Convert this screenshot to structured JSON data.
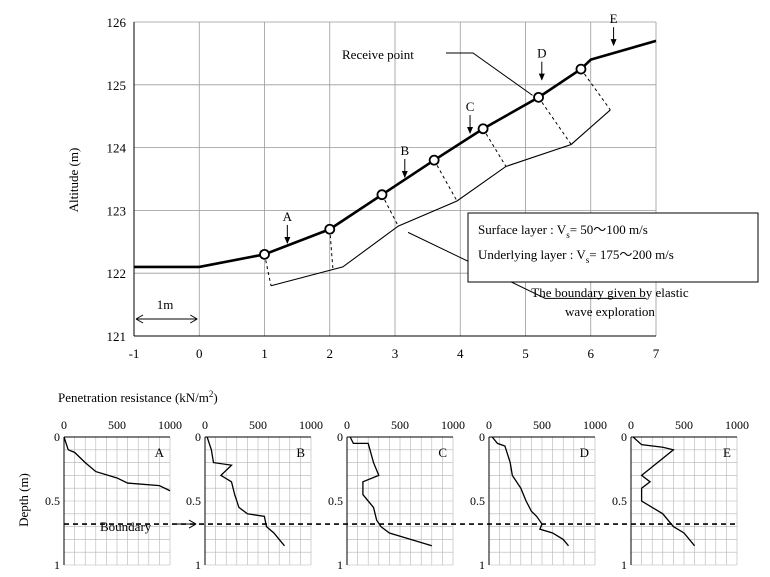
{
  "chart_data": [
    {
      "type": "line",
      "ylabel": "Altitude (m)",
      "xlim": [
        -1,
        7
      ],
      "ylim": [
        121,
        126
      ],
      "x_ticks": [
        "-1",
        "0",
        "1",
        "2",
        "3",
        "4",
        "5",
        "6",
        "7"
      ],
      "y_ticks": [
        "121",
        "122",
        "123",
        "124",
        "125",
        "126"
      ],
      "scale_label": "1m",
      "series": [
        {
          "role": "ground-surface",
          "points": [
            [
              -1,
              122.1
            ],
            [
              0,
              122.1
            ],
            [
              1,
              122.3
            ],
            [
              2,
              122.7
            ],
            [
              2.8,
              123.25
            ],
            [
              3.6,
              123.8
            ],
            [
              4.35,
              124.3
            ],
            [
              5.2,
              124.8
            ],
            [
              5.85,
              125.25
            ],
            [
              6,
              125.4
            ],
            [
              7,
              125.7
            ]
          ]
        },
        {
          "role": "boundary",
          "points": [
            [
              1.1,
              121.8
            ],
            [
              2.2,
              122.1
            ],
            [
              3.05,
              122.75
            ],
            [
              3.95,
              123.15
            ],
            [
              4.7,
              123.7
            ],
            [
              5.7,
              124.05
            ],
            [
              6.3,
              124.6
            ]
          ]
        }
      ],
      "receive_points": [
        [
          1,
          122.3
        ],
        [
          2,
          122.7
        ],
        [
          2.8,
          123.25
        ],
        [
          3.6,
          123.8
        ],
        [
          4.35,
          124.3
        ],
        [
          5.2,
          124.8
        ],
        [
          5.85,
          125.25
        ]
      ],
      "dashed_links": [
        [
          [
            1,
            122.3
          ],
          [
            1.1,
            121.8
          ]
        ],
        [
          [
            2,
            122.7
          ],
          [
            2.05,
            122.05
          ]
        ],
        [
          [
            2.8,
            123.25
          ],
          [
            3.05,
            122.75
          ]
        ],
        [
          [
            3.6,
            123.8
          ],
          [
            3.95,
            123.15
          ]
        ],
        [
          [
            4.35,
            124.3
          ],
          [
            4.7,
            123.7
          ]
        ],
        [
          [
            5.2,
            124.8
          ],
          [
            5.7,
            124.05
          ]
        ],
        [
          [
            5.85,
            125.25
          ],
          [
            6.3,
            124.6
          ]
        ]
      ],
      "station_labels": [
        {
          "name": "A",
          "at": [
            1.35,
            122.45
          ]
        },
        {
          "name": "B",
          "at": [
            3.15,
            123.5
          ]
        },
        {
          "name": "C",
          "at": [
            4.15,
            124.2
          ]
        },
        {
          "name": "D",
          "at": [
            5.25,
            125.05
          ]
        },
        {
          "name": "E",
          "at": [
            6.35,
            125.6
          ]
        }
      ],
      "annotations": {
        "receive_point": "Receive point",
        "surface_layer": "Surface layer :  V",
        "surface_layer_value": "= 50～100 m/s",
        "underlying_layer": "Underlying layer :  V",
        "underlying_layer_value": "= 175～200 m/s",
        "subscript": "s",
        "boundary_line1": "The boundary given by elastic",
        "boundary_line2": "wave exploration"
      }
    },
    {
      "type": "line",
      "title": "Penetration resistance (kN/m",
      "title_sup": "2",
      "title_end": ")",
      "ylabel": "Depth (m)",
      "xlim": [
        0,
        1000
      ],
      "ylim": [
        0,
        1
      ],
      "x_ticks": [
        "0",
        "500",
        "1000"
      ],
      "y_ticks": [
        "0",
        "0.5",
        "1"
      ],
      "boundary_depth": 0.68,
      "boundary_label": "Boundary",
      "panels": [
        {
          "name": "A",
          "points": [
            [
              0,
              0
            ],
            [
              40,
              0.1
            ],
            [
              100,
              0.12
            ],
            [
              200,
              0.2
            ],
            [
              300,
              0.27
            ],
            [
              500,
              0.32
            ],
            [
              600,
              0.36
            ],
            [
              900,
              0.38
            ],
            [
              1000,
              0.42
            ]
          ]
        },
        {
          "name": "B",
          "points": [
            [
              20,
              0
            ],
            [
              60,
              0.1
            ],
            [
              80,
              0.2
            ],
            [
              250,
              0.22
            ],
            [
              150,
              0.3
            ],
            [
              250,
              0.35
            ],
            [
              280,
              0.45
            ],
            [
              320,
              0.55
            ],
            [
              400,
              0.6
            ],
            [
              560,
              0.62
            ],
            [
              580,
              0.7
            ],
            [
              650,
              0.75
            ],
            [
              700,
              0.8
            ],
            [
              750,
              0.85
            ]
          ]
        },
        {
          "name": "C",
          "points": [
            [
              30,
              0
            ],
            [
              60,
              0.05
            ],
            [
              200,
              0.05
            ],
            [
              250,
              0.2
            ],
            [
              300,
              0.3
            ],
            [
              150,
              0.35
            ],
            [
              150,
              0.45
            ],
            [
              250,
              0.55
            ],
            [
              280,
              0.65
            ],
            [
              320,
              0.7
            ],
            [
              400,
              0.75
            ],
            [
              600,
              0.8
            ],
            [
              800,
              0.85
            ]
          ]
        },
        {
          "name": "D",
          "points": [
            [
              30,
              0
            ],
            [
              80,
              0.05
            ],
            [
              150,
              0.07
            ],
            [
              200,
              0.2
            ],
            [
              220,
              0.3
            ],
            [
              300,
              0.4
            ],
            [
              350,
              0.5
            ],
            [
              400,
              0.58
            ],
            [
              450,
              0.62
            ],
            [
              500,
              0.68
            ],
            [
              480,
              0.72
            ],
            [
              600,
              0.75
            ],
            [
              700,
              0.8
            ],
            [
              750,
              0.85
            ]
          ]
        },
        {
          "name": "E",
          "points": [
            [
              20,
              0
            ],
            [
              100,
              0.06
            ],
            [
              300,
              0.08
            ],
            [
              400,
              0.1
            ],
            [
              250,
              0.2
            ],
            [
              100,
              0.3
            ],
            [
              180,
              0.35
            ],
            [
              100,
              0.4
            ],
            [
              100,
              0.5
            ],
            [
              200,
              0.55
            ],
            [
              300,
              0.6
            ],
            [
              400,
              0.7
            ],
            [
              500,
              0.75
            ],
            [
              600,
              0.85
            ]
          ]
        }
      ]
    }
  ]
}
